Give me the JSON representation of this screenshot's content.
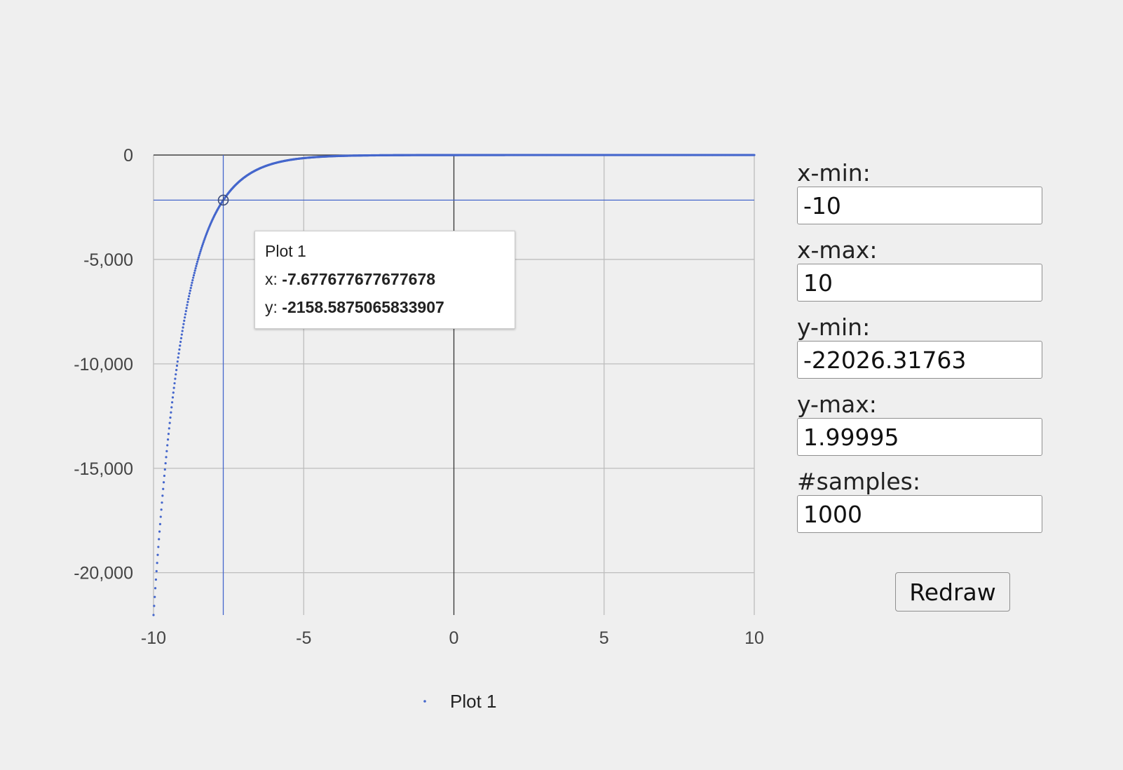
{
  "chart_data": {
    "type": "scatter",
    "function": "-e^(-x)",
    "x_range": [
      -10,
      10
    ],
    "samples": 1000,
    "x_ticks": [
      "-10",
      "-5",
      "0",
      "5",
      "10"
    ],
    "y_ticks": [
      "0",
      "-5,000",
      "-10,000",
      "-15,000",
      "-20,000"
    ],
    "x_tick_values": [
      -10,
      -5,
      0,
      5,
      10
    ],
    "y_tick_values": [
      0,
      -5000,
      -10000,
      -15000,
      -20000
    ],
    "xlim": [
      -10,
      10
    ],
    "ylim": [
      -22026.31763,
      1.99995
    ],
    "grid": true,
    "legend_position": "bottom",
    "series": [
      {
        "name": "Plot 1",
        "color": "#4466cc"
      }
    ],
    "highlighted_point": {
      "x": -7.677677677677678,
      "y": -2158.5875065833907
    }
  },
  "tooltip": {
    "title": "Plot 1",
    "x_label": "x: ",
    "x_value": "-7.677677677677678",
    "y_label": "y: ",
    "y_value": "-2158.5875065833907"
  },
  "legend": {
    "label": "Plot 1"
  },
  "controls": {
    "x_min_label": "x-min:",
    "x_min_value": "-10",
    "x_max_label": "x-max:",
    "x_max_value": "10",
    "y_min_label": "y-min:",
    "y_min_value": "-22026.31763",
    "y_max_label": "y-max:",
    "y_max_value": "1.99995",
    "samples_label": "#samples:",
    "samples_value": "1000",
    "redraw_label": "Redraw"
  },
  "colors": {
    "background": "#efefef",
    "series": "#4466cc",
    "gridline": "#bdbdbd",
    "zero_line": "#333333"
  }
}
